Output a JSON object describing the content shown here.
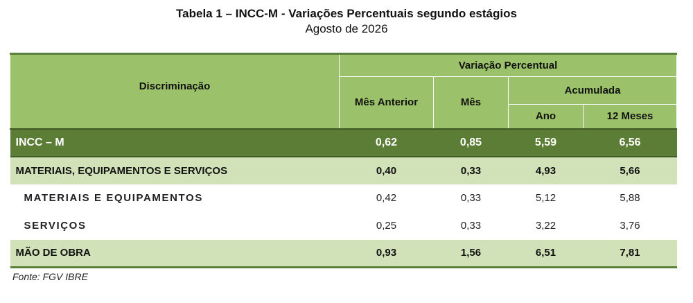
{
  "document": {
    "title": "Tabela 1 – INCC-M - Variações Percentuais segundo estágios",
    "subtitle": "Agosto de 2026",
    "source": "Fonte: FGV IBRE"
  },
  "table": {
    "headers": {
      "discriminacao": "Discriminação",
      "variacao_percentual": "Variação Percentual",
      "mes_anterior": "Mês Anterior",
      "mes": "Mês",
      "acumulada": "Acumulada",
      "ano": "Ano",
      "doze_meses": "12 Meses"
    },
    "rows": [
      {
        "label": "INCC – M",
        "mes_anterior": "0,62",
        "mes": "0,85",
        "ano": "5,59",
        "doze_meses": "6,56"
      },
      {
        "label": "MATERIAIS, EQUIPAMENTOS E SERVIÇOS",
        "mes_anterior": "0,40",
        "mes": "0,33",
        "ano": "4,93",
        "doze_meses": "5,66"
      },
      {
        "label": "MATERIAIS E EQUIPAMENTOS",
        "mes_anterior": "0,42",
        "mes": "0,33",
        "ano": "5,12",
        "doze_meses": "5,88"
      },
      {
        "label": "SERVIÇOS",
        "mes_anterior": "0,25",
        "mes": "0,33",
        "ano": "3,22",
        "doze_meses": "3,76"
      },
      {
        "label": "MÃO DE OBRA",
        "mes_anterior": "0,93",
        "mes": "1,56",
        "ano": "6,51",
        "doze_meses": "7,81"
      }
    ]
  },
  "colors": {
    "header_bg": "#9bc26a",
    "total_row_bg": "#5c7d35",
    "group_row_bg": "#d1e2b8",
    "rule": "#5b7f3a"
  }
}
